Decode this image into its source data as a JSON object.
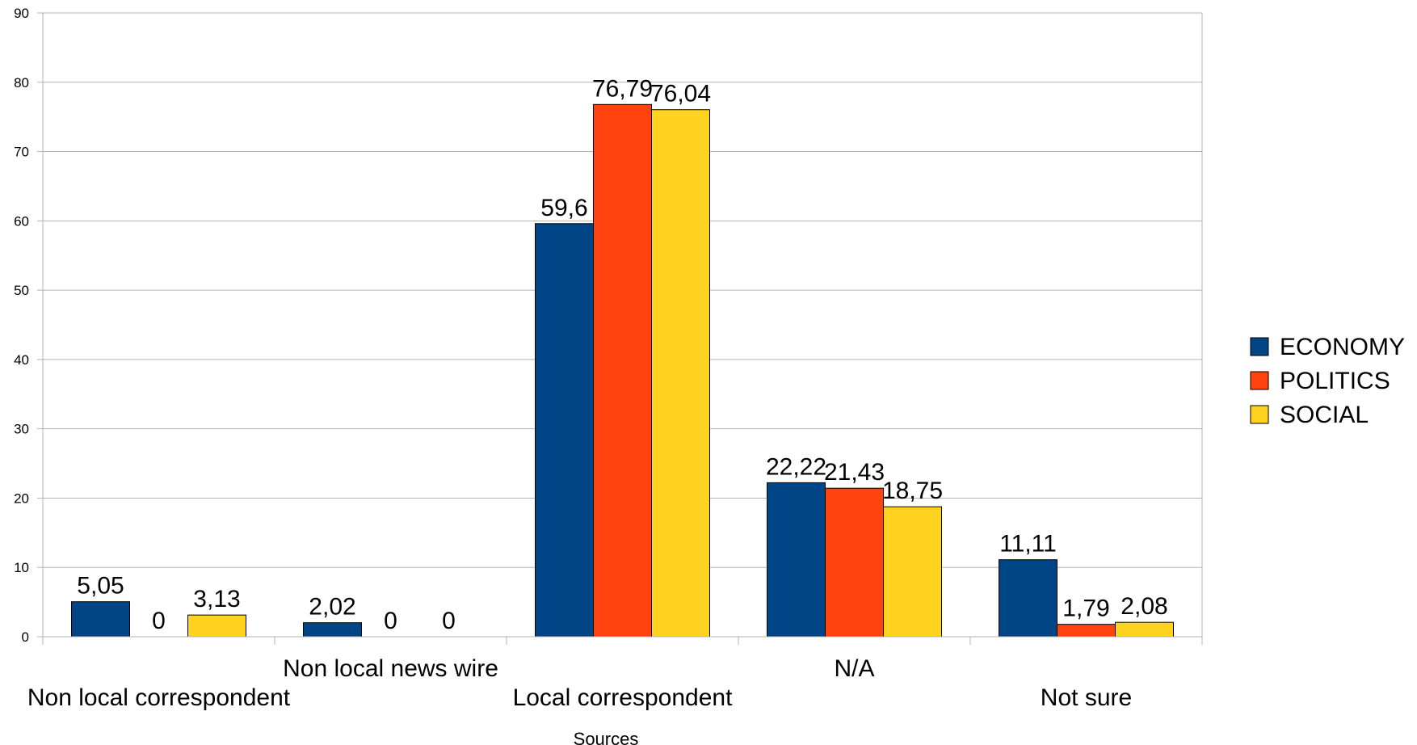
{
  "chart_data": {
    "type": "bar",
    "title": "",
    "xlabel": "Sources",
    "ylabel": "",
    "ylim": [
      0,
      90
    ],
    "yticks": [
      0,
      10,
      20,
      30,
      40,
      50,
      60,
      70,
      80,
      90
    ],
    "grid": true,
    "legend_position": "right",
    "categories": [
      "Non local correspondent",
      "Non local news wire",
      "Local correspondent",
      "N/A",
      "Not sure"
    ],
    "series": [
      {
        "name": "ECONOMY",
        "color": "#004586",
        "values": [
          5.05,
          2.02,
          59.6,
          22.22,
          11.11
        ],
        "labels": [
          "5,05",
          "2,02",
          "59,6",
          "22,22",
          "11,11"
        ]
      },
      {
        "name": "POLITICS",
        "color": "#ff420e",
        "values": [
          0,
          0,
          76.79,
          21.43,
          1.79
        ],
        "labels": [
          "0",
          "0",
          "76,79",
          "21,43",
          "1,79"
        ]
      },
      {
        "name": "SOCIAL",
        "color": "#ffd320",
        "values": [
          3.13,
          0,
          76.04,
          18.75,
          2.08
        ],
        "labels": [
          "3,13",
          "0",
          "76,04",
          "18,75",
          "2,08"
        ]
      }
    ]
  }
}
